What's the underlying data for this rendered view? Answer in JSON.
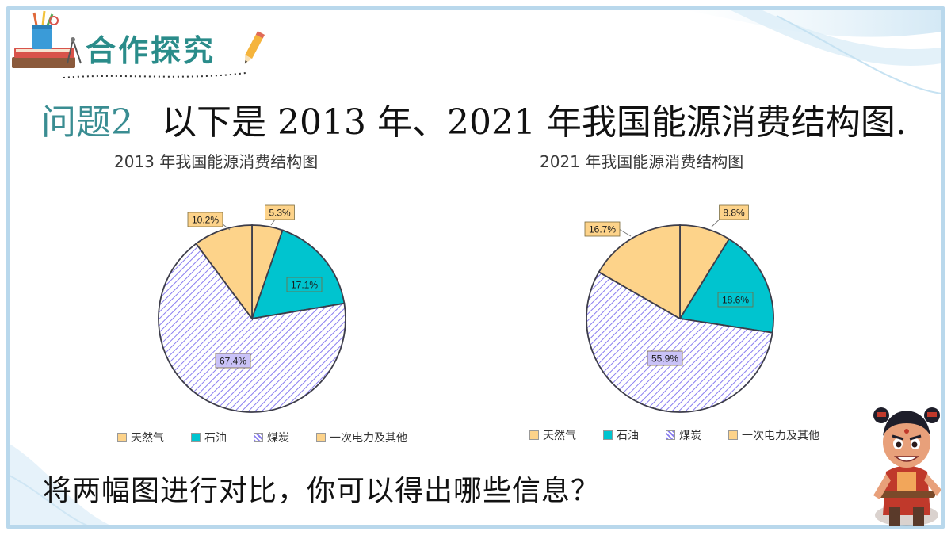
{
  "header": {
    "title": "合作探究"
  },
  "question": {
    "number": "问题2",
    "text": "以下是 2013 年、2021 年我国能源消费结构图."
  },
  "prompt": "将两幅图进行对比，你可以得出哪些信息？",
  "chart_data": [
    {
      "type": "pie",
      "title": "2013 年我国能源消费结构图",
      "categories": [
        "天然气",
        "石油",
        "煤炭",
        "一次电力及其他"
      ],
      "values": [
        5.3,
        17.1,
        67.4,
        10.2
      ],
      "data_labels": [
        "5.3%",
        "17.1%",
        "67.4%",
        "10.2%"
      ],
      "legend_position": "bottom"
    },
    {
      "type": "pie",
      "title": "2021 年我国能源消费结构图",
      "categories": [
        "天然气",
        "石油",
        "煤炭",
        "一次电力及其他"
      ],
      "values": [
        8.8,
        18.6,
        55.9,
        16.7
      ],
      "data_labels": [
        "8.8%",
        "18.6%",
        "55.9%",
        "16.7%"
      ],
      "legend_position": "bottom"
    }
  ],
  "colors": {
    "natural_gas": "#fdd38a",
    "oil": "#00c4cf",
    "coal": "#8a7ef0",
    "primary_power": "#fdd38a",
    "slice_border": "#3d3d4a",
    "label_border": "#7a6a3a",
    "accent_title": "#2a8c8a"
  }
}
